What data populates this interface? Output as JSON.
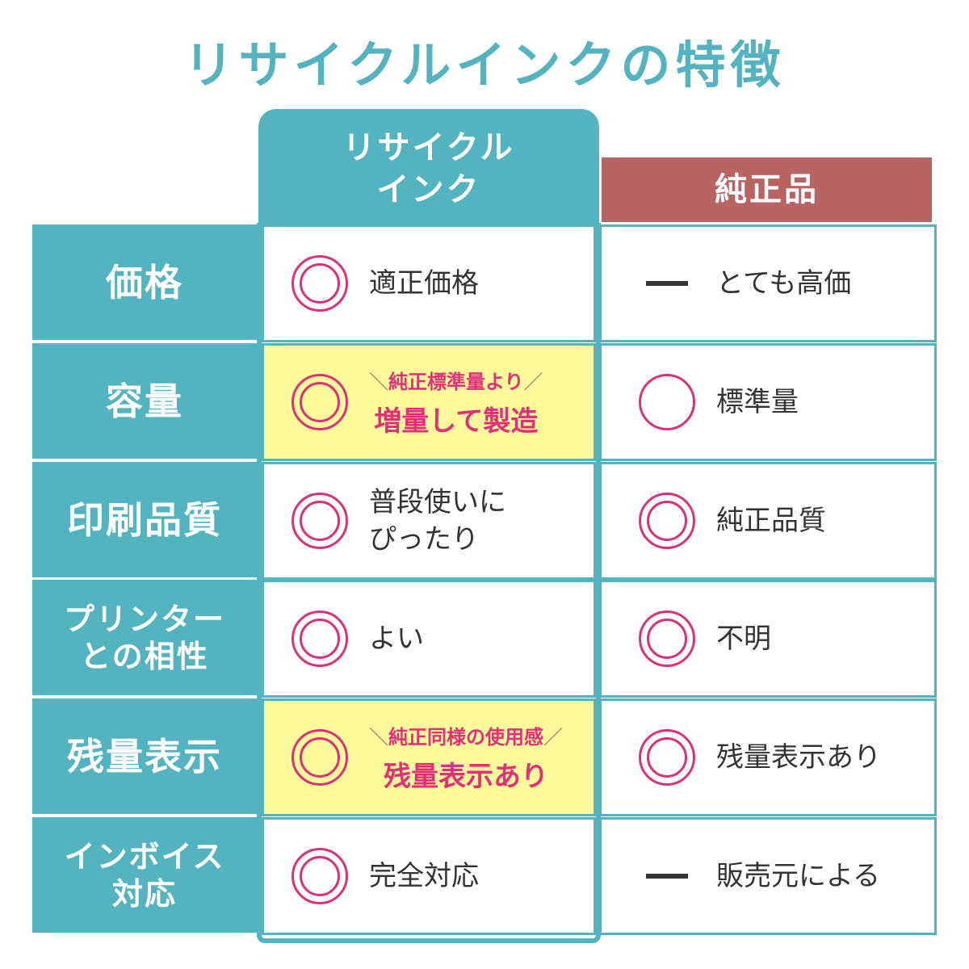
{
  "title": "リサイクルインクの特徴",
  "columns": {
    "recycled": [
      "リサイクル",
      "インク"
    ],
    "genuine": "純正品"
  },
  "colors": {
    "teal": "#53b4bf",
    "genuine": "#b86462",
    "mark": "#d8337a",
    "highlight": "#fdfa9c"
  },
  "rows": [
    {
      "label": [
        "価格"
      ],
      "recycled": {
        "mark": "double-circle",
        "text": [
          "適正価格"
        ]
      },
      "genuine": {
        "mark": "dash",
        "text": "とても高価"
      }
    },
    {
      "label": [
        "容量"
      ],
      "recycled": {
        "mark": "double-circle",
        "note": "純正標準量より",
        "text": [
          "増量して製造"
        ],
        "highlight": true
      },
      "genuine": {
        "mark": "circle",
        "text": "標準量"
      }
    },
    {
      "label": [
        "印刷品質"
      ],
      "recycled": {
        "mark": "double-circle",
        "text": [
          "普段使いに",
          "ぴったり"
        ]
      },
      "genuine": {
        "mark": "double-circle",
        "text": "純正品質"
      }
    },
    {
      "label": [
        "プリンター",
        "との相性"
      ],
      "recycled": {
        "mark": "double-circle",
        "text": [
          "よい"
        ]
      },
      "genuine": {
        "mark": "double-circle",
        "text": "不明"
      }
    },
    {
      "label": [
        "残量表示"
      ],
      "recycled": {
        "mark": "double-circle",
        "note": "純正同様の使用感",
        "text": [
          "残量表示あり"
        ],
        "highlight": true
      },
      "genuine": {
        "mark": "double-circle",
        "text": "残量表示あり"
      }
    },
    {
      "label": [
        "インボイス",
        "対応"
      ],
      "recycled": {
        "mark": "double-circle",
        "text": [
          "完全対応"
        ]
      },
      "genuine": {
        "mark": "dash",
        "text": "販売元による"
      }
    }
  ]
}
